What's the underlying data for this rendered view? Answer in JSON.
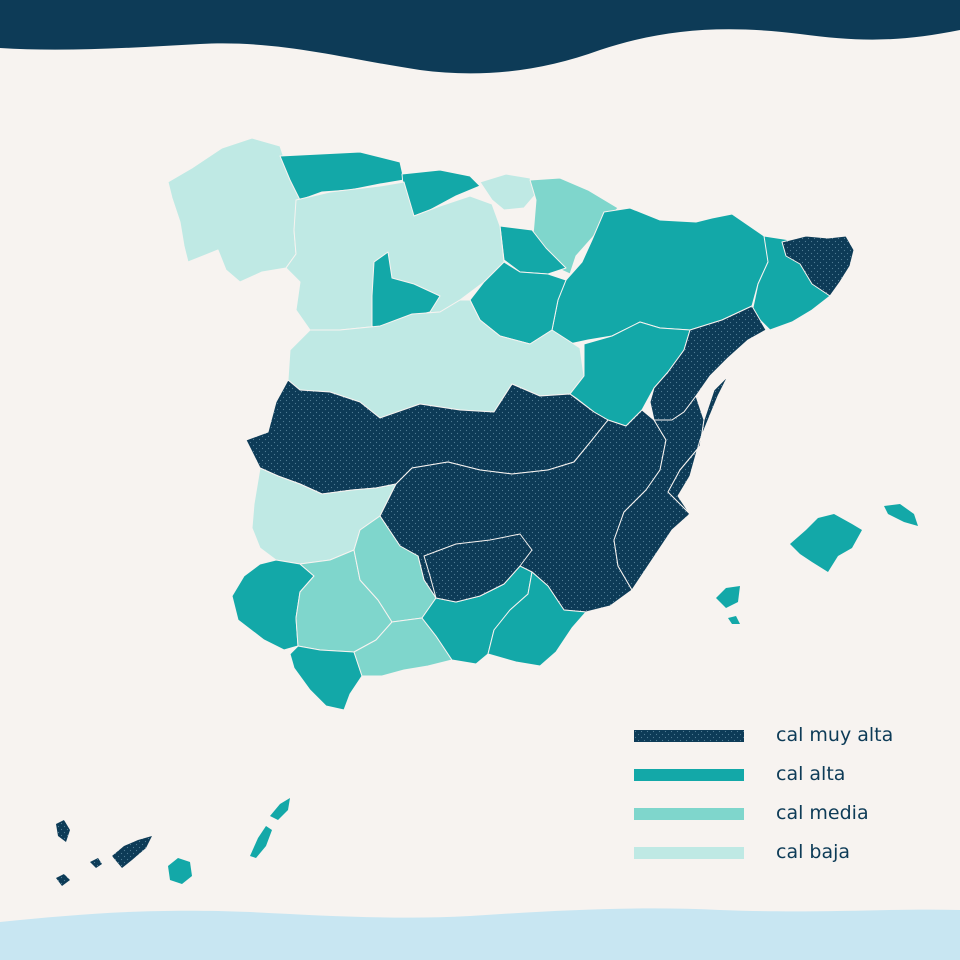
{
  "colors": {
    "background": "#f7f3f0",
    "top_wave": "#0d3b57",
    "bottom_wave": "#c8e6f2",
    "muy_alta": "#0d3b57",
    "alta": "#13a8a8",
    "media": "#7fd6cc",
    "baja": "#bfe9e4"
  },
  "legend": {
    "items": [
      {
        "key": "muy_alta",
        "label": "cal muy alta",
        "color": "#0d3b57"
      },
      {
        "key": "alta",
        "label": "cal alta",
        "color": "#13a8a8"
      },
      {
        "key": "media",
        "label": "cal media",
        "color": "#7fd6cc"
      },
      {
        "key": "baja",
        "label": "cal baja",
        "color": "#bfe9e4"
      }
    ]
  },
  "regions": [
    {
      "name": "galicia",
      "level": "baja"
    },
    {
      "name": "asturias",
      "level": "alta"
    },
    {
      "name": "cantabria",
      "level": "alta"
    },
    {
      "name": "pais-vasco",
      "level": "baja"
    },
    {
      "name": "navarra",
      "level": "media"
    },
    {
      "name": "la-rioja",
      "level": "alta"
    },
    {
      "name": "aragon",
      "level": "alta"
    },
    {
      "name": "cataluna",
      "level": "alta"
    },
    {
      "name": "girona",
      "level": "muy_alta"
    },
    {
      "name": "castilla-y-leon",
      "level": "baja"
    },
    {
      "name": "valladolid",
      "level": "alta"
    },
    {
      "name": "madrid-norte",
      "level": "baja"
    },
    {
      "name": "teruel",
      "level": "alta"
    },
    {
      "name": "castellon",
      "level": "muy_alta"
    },
    {
      "name": "extremadura-norte",
      "level": "muy_alta"
    },
    {
      "name": "extremadura-sur",
      "level": "baja"
    },
    {
      "name": "castilla-la-mancha",
      "level": "muy_alta"
    },
    {
      "name": "valencia",
      "level": "muy_alta"
    },
    {
      "name": "murcia",
      "level": "muy_alta"
    },
    {
      "name": "huelva",
      "level": "alta"
    },
    {
      "name": "sevilla",
      "level": "media"
    },
    {
      "name": "cordoba",
      "level": "media"
    },
    {
      "name": "cadiz",
      "level": "alta"
    },
    {
      "name": "malaga",
      "level": "media"
    },
    {
      "name": "granada",
      "level": "alta"
    },
    {
      "name": "almeria",
      "level": "alta"
    },
    {
      "name": "mallorca",
      "level": "alta"
    },
    {
      "name": "menorca",
      "level": "alta"
    },
    {
      "name": "ibiza",
      "level": "alta"
    },
    {
      "name": "la-palma",
      "level": "muy_alta"
    },
    {
      "name": "el-hierro",
      "level": "muy_alta"
    },
    {
      "name": "la-gomera",
      "level": "muy_alta"
    },
    {
      "name": "tenerife",
      "level": "muy_alta"
    },
    {
      "name": "gran-canaria",
      "level": "alta"
    },
    {
      "name": "fuerteventura",
      "level": "alta"
    },
    {
      "name": "lanzarote",
      "level": "alta"
    }
  ]
}
